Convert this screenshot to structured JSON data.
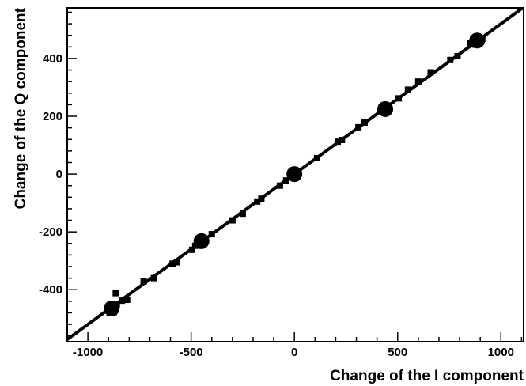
{
  "chart_data": {
    "type": "scatter",
    "title": "",
    "xlabel": "Change of the I component",
    "ylabel": "Change of the Q component",
    "xlim": [
      -1100,
      1110
    ],
    "ylim": [
      -580,
      575
    ],
    "xticks": [
      -1000,
      -500,
      0,
      500,
      1000
    ],
    "xtick_labels": [
      "-1000",
      "-500",
      "0",
      "500",
      "1000"
    ],
    "yticks": [
      -400,
      -200,
      0,
      200,
      400
    ],
    "ytick_labels": [
      "-400",
      "-200",
      "0",
      "200",
      "400"
    ],
    "grid": false,
    "legend": "none",
    "colors": {
      "marker": "#000000",
      "line": "#000000"
    },
    "fit_line": {
      "slope": 0.52,
      "intercept": 0
    },
    "clusters": [
      {
        "x": -885,
        "y": -465
      },
      {
        "x": -450,
        "y": -232
      },
      {
        "x": 0,
        "y": 0
      },
      {
        "x": 440,
        "y": 225
      },
      {
        "x": 885,
        "y": 462
      }
    ],
    "points": [
      {
        "x": -900,
        "y": -470
      },
      {
        "x": -890,
        "y": -460
      },
      {
        "x": -880,
        "y": -468
      },
      {
        "x": -870,
        "y": -455
      },
      {
        "x": -875,
        "y": -478
      },
      {
        "x": -895,
        "y": -480
      },
      {
        "x": -905,
        "y": -462
      },
      {
        "x": -860,
        "y": -452
      },
      {
        "x": -865,
        "y": -412
      },
      {
        "x": -835,
        "y": -438
      },
      {
        "x": -810,
        "y": -435
      },
      {
        "x": -730,
        "y": -372
      },
      {
        "x": -680,
        "y": -360
      },
      {
        "x": -590,
        "y": -310
      },
      {
        "x": -570,
        "y": -305
      },
      {
        "x": -495,
        "y": -262
      },
      {
        "x": -480,
        "y": -248
      },
      {
        "x": -470,
        "y": -240
      },
      {
        "x": -460,
        "y": -230
      },
      {
        "x": -450,
        "y": -228
      },
      {
        "x": -440,
        "y": -235
      },
      {
        "x": -430,
        "y": -225
      },
      {
        "x": -455,
        "y": -238
      },
      {
        "x": -400,
        "y": -208
      },
      {
        "x": -300,
        "y": -160
      },
      {
        "x": -250,
        "y": -137
      },
      {
        "x": -180,
        "y": -95
      },
      {
        "x": -160,
        "y": -85
      },
      {
        "x": -70,
        "y": -40
      },
      {
        "x": -40,
        "y": -22
      },
      {
        "x": -20,
        "y": -10
      },
      {
        "x": -10,
        "y": -5
      },
      {
        "x": 0,
        "y": 0
      },
      {
        "x": 8,
        "y": 4
      },
      {
        "x": 15,
        "y": 6
      },
      {
        "x": -5,
        "y": 3
      },
      {
        "x": 5,
        "y": -3
      },
      {
        "x": 110,
        "y": 55
      },
      {
        "x": 210,
        "y": 112
      },
      {
        "x": 230,
        "y": 118
      },
      {
        "x": 310,
        "y": 162
      },
      {
        "x": 340,
        "y": 178
      },
      {
        "x": 415,
        "y": 218
      },
      {
        "x": 425,
        "y": 228
      },
      {
        "x": 435,
        "y": 222
      },
      {
        "x": 445,
        "y": 230
      },
      {
        "x": 455,
        "y": 224
      },
      {
        "x": 440,
        "y": 215
      },
      {
        "x": 505,
        "y": 262
      },
      {
        "x": 550,
        "y": 292
      },
      {
        "x": 600,
        "y": 320
      },
      {
        "x": 660,
        "y": 352
      },
      {
        "x": 755,
        "y": 395
      },
      {
        "x": 790,
        "y": 408
      },
      {
        "x": 850,
        "y": 452
      },
      {
        "x": 865,
        "y": 465
      },
      {
        "x": 880,
        "y": 458
      },
      {
        "x": 890,
        "y": 470
      },
      {
        "x": 900,
        "y": 462
      },
      {
        "x": 910,
        "y": 468
      },
      {
        "x": 875,
        "y": 448
      }
    ]
  }
}
